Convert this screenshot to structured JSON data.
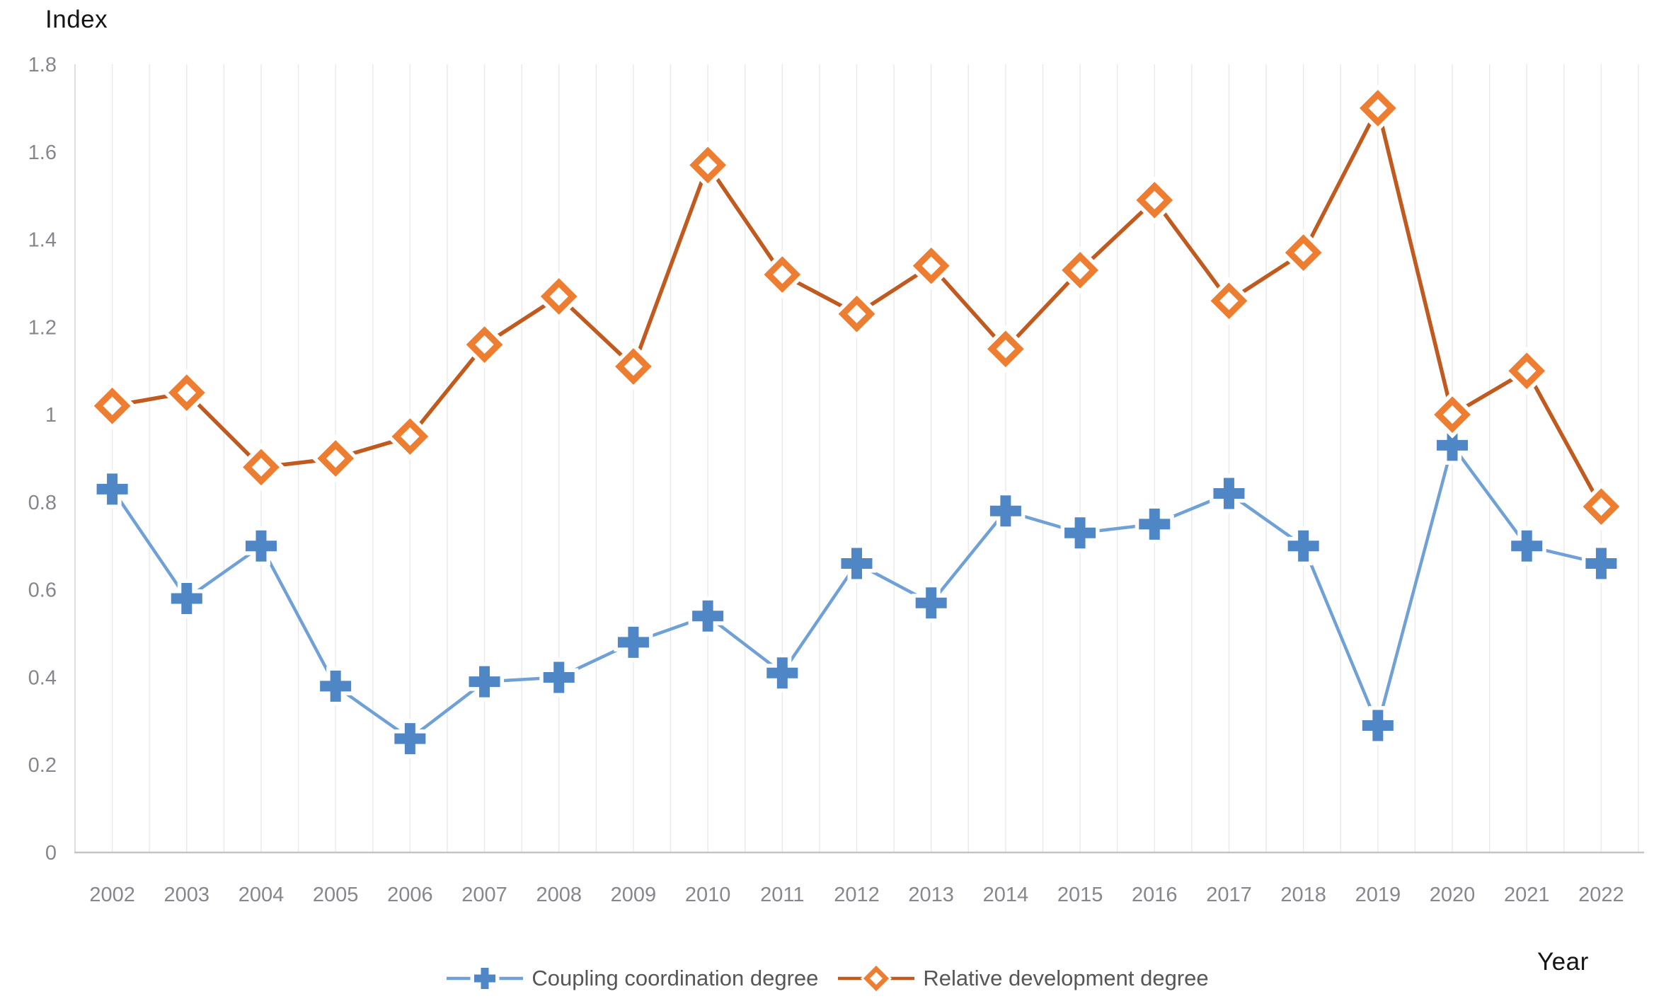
{
  "chart_data": {
    "type": "line",
    "title": "",
    "xlabel": "Year",
    "ylabel": "Index",
    "categories": [
      2002,
      2003,
      2004,
      2005,
      2006,
      2007,
      2008,
      2009,
      2010,
      2011,
      2012,
      2013,
      2014,
      2015,
      2016,
      2017,
      2018,
      2019,
      2020,
      2021,
      2022
    ],
    "series": [
      {
        "name": "Coupling coordination degree",
        "marker": "plus",
        "marker_color": "#4E86C6",
        "line_color": "#6FA0D6",
        "values": [
          0.83,
          0.58,
          0.7,
          0.38,
          0.26,
          0.39,
          0.4,
          0.48,
          0.54,
          0.41,
          0.66,
          0.57,
          0.78,
          0.73,
          0.75,
          0.82,
          0.7,
          0.29,
          0.93,
          0.7,
          0.66
        ]
      },
      {
        "name": "Relative development degree",
        "marker": "diamond",
        "marker_color": "#ED7D31",
        "line_color": "#C05A1E",
        "values": [
          1.02,
          1.05,
          0.88,
          0.9,
          0.95,
          1.16,
          1.27,
          1.11,
          1.57,
          1.32,
          1.23,
          1.34,
          1.15,
          1.33,
          1.49,
          1.26,
          1.37,
          1.7,
          1.0,
          1.1,
          0.79
        ]
      }
    ],
    "ylim": [
      0,
      1.8
    ],
    "xlim": [
      2001.5,
      2022.5
    ],
    "y_ticks": {
      "values": [
        0,
        0.2,
        0.4,
        0.6,
        0.8,
        1,
        1.2,
        1.4,
        1.6,
        1.8
      ],
      "labels": [
        "0",
        "0.2",
        "0.4",
        "0.6",
        "0.8",
        "1",
        "1.2",
        "1.4",
        "1.6",
        "1.8"
      ]
    },
    "x_tick_labels": [
      "2002",
      "2003",
      "2004",
      "2005",
      "2006",
      "2007",
      "2008",
      "2009",
      "2010",
      "2011",
      "2012",
      "2013",
      "2014",
      "2015",
      "2016",
      "2017",
      "2018",
      "2019",
      "2020",
      "2021",
      "2022"
    ],
    "grid": {
      "vertical_minor_step": 0.5,
      "color": "#E9E9E9",
      "left_axis_color": "#D8D8D8",
      "bottom_axis_color": "#C4C4C4"
    },
    "legend_position": "bottom",
    "text_colors": {
      "ticks": "#86868E",
      "legend": "#565656",
      "axis_titles": "#151515"
    }
  }
}
